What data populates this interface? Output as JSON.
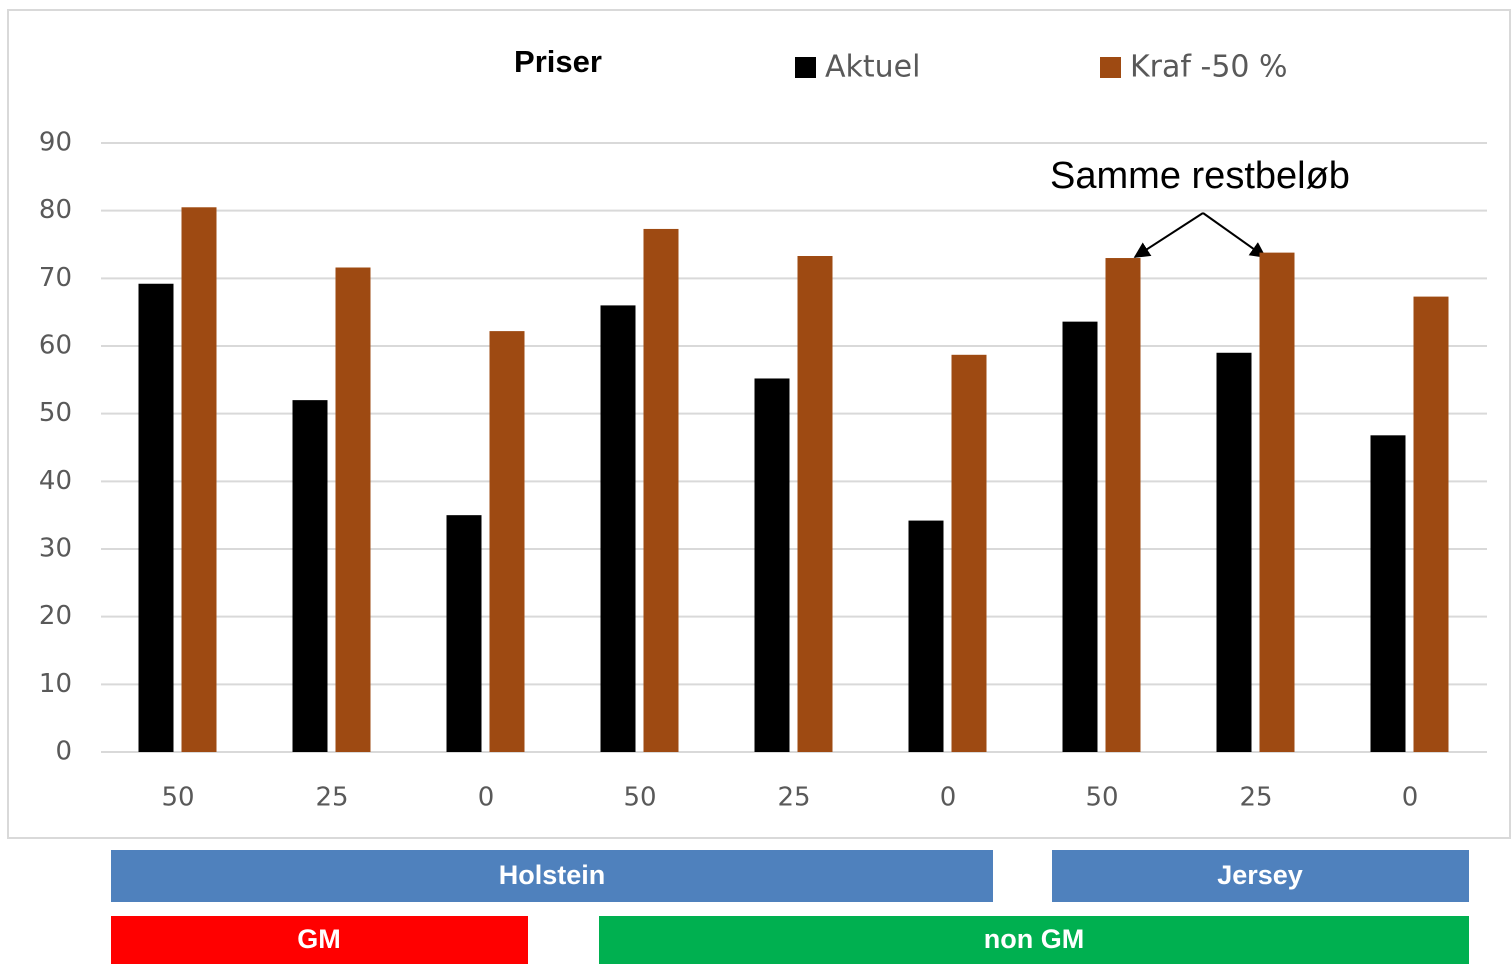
{
  "chart_data": {
    "type": "bar",
    "title": "Priser",
    "categories": [
      "50",
      "25",
      "0",
      "50",
      "25",
      "0",
      "50",
      "25",
      "0"
    ],
    "series": [
      {
        "name": "Aktuel",
        "color": "#000000",
        "values": [
          69.2,
          52,
          35,
          66,
          55.2,
          34.2,
          63.6,
          59,
          46.8
        ]
      },
      {
        "name": "Kraf -50 %",
        "color": "#9e4a12",
        "values": [
          80.5,
          71.6,
          62.2,
          77.3,
          73.3,
          58.7,
          73,
          73.8,
          67.3
        ]
      }
    ],
    "ylim": [
      0,
      90
    ],
    "yticks": [
      0,
      10,
      20,
      30,
      40,
      50,
      60,
      70,
      80,
      90
    ],
    "grid": true,
    "annotation": "Samme restbeløb",
    "groups": [
      "Holstein",
      "Jersey",
      "GM",
      "non GM"
    ]
  }
}
